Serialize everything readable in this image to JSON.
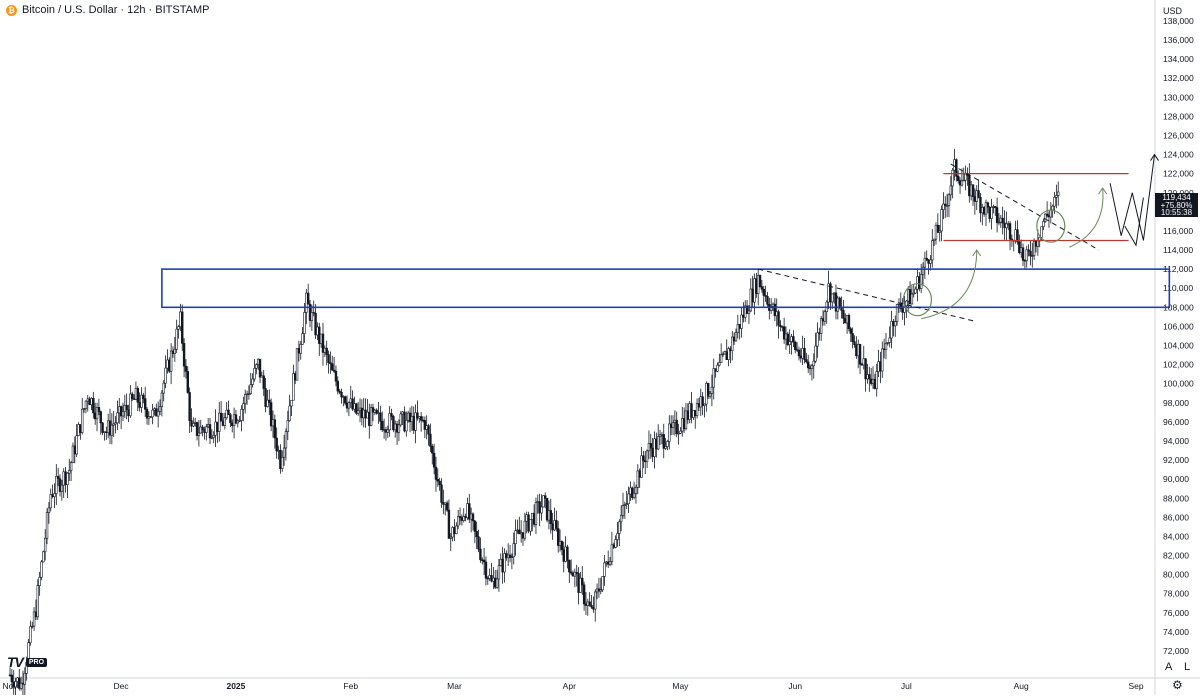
{
  "symbol_title": "Bitcoin / U.S. Dollar · 12h · BITSTAMP",
  "currency": "USD",
  "price_tag": {
    "price": "119,434",
    "change": "+75.80%",
    "countdown": "10:55:38"
  },
  "watermark": {
    "text": "TV",
    "badge": "PRO"
  },
  "corner_buttons": {
    "auto": "A",
    "log": "L"
  },
  "icons": {
    "symbol": "bitcoin-icon",
    "settings": "gear-icon"
  },
  "colors": {
    "candles": "#131722",
    "zone": "#1c3fb8",
    "resistance": "#b93a32",
    "arrow": "#6a8a5a"
  },
  "chart_data": {
    "type": "candlestick",
    "title": "Bitcoin / U.S. Dollar · 12h · BITSTAMP",
    "interval": "12h",
    "ylim": [
      70000,
      139000
    ],
    "y_ticks": [
      "72,000",
      "74,000",
      "76,000",
      "78,000",
      "80,000",
      "82,000",
      "84,000",
      "86,000",
      "88,000",
      "90,000",
      "92,000",
      "94,000",
      "96,000",
      "98,000",
      "100,000",
      "102,000",
      "104,000",
      "106,000",
      "108,000",
      "110,000",
      "112,000",
      "114,000",
      "116,000",
      "118,000",
      "120,000",
      "122,000",
      "124,000",
      "126,000",
      "128,000",
      "130,000",
      "132,000",
      "134,000",
      "136,000",
      "138,000"
    ],
    "x_ticks": [
      "Nov",
      "Dec",
      "2025",
      "Feb",
      "Mar",
      "Apr",
      "May",
      "Jun",
      "Jul",
      "Aug",
      "Sep"
    ],
    "price_path": [
      [
        "2024-11-01",
        69500
      ],
      [
        "2024-11-04",
        68500
      ],
      [
        "2024-11-08",
        76500
      ],
      [
        "2024-11-12",
        88500
      ],
      [
        "2024-11-17",
        91000
      ],
      [
        "2024-11-22",
        99000
      ],
      [
        "2024-11-27",
        95000
      ],
      [
        "2024-12-05",
        98500
      ],
      [
        "2024-12-10",
        96500
      ],
      [
        "2024-12-17",
        106500
      ],
      [
        "2024-12-20",
        95000
      ],
      [
        "2024-12-26",
        95500
      ],
      [
        "2025-01-02",
        97000
      ],
      [
        "2025-01-07",
        102000
      ],
      [
        "2025-01-13",
        92000
      ],
      [
        "2025-01-20",
        108500
      ],
      [
        "2025-01-27",
        101000
      ],
      [
        "2025-02-02",
        97000
      ],
      [
        "2025-02-10",
        96000
      ],
      [
        "2025-02-21",
        96000
      ],
      [
        "2025-02-28",
        84000
      ],
      [
        "2025-03-04",
        87000
      ],
      [
        "2025-03-11",
        79000
      ],
      [
        "2025-03-18",
        84000
      ],
      [
        "2025-03-25",
        87500
      ],
      [
        "2025-03-31",
        82000
      ],
      [
        "2025-04-07",
        76000
      ],
      [
        "2025-04-14",
        85000
      ],
      [
        "2025-04-22",
        93000
      ],
      [
        "2025-04-29",
        95000
      ],
      [
        "2025-05-08",
        99000
      ],
      [
        "2025-05-14",
        103500
      ],
      [
        "2025-05-22",
        111000
      ],
      [
        "2025-05-28",
        106000
      ],
      [
        "2025-06-05",
        101500
      ],
      [
        "2025-06-10",
        110000
      ],
      [
        "2025-06-17",
        104500
      ],
      [
        "2025-06-22",
        99500
      ],
      [
        "2025-06-28",
        107500
      ],
      [
        "2025-07-03",
        109500
      ],
      [
        "2025-07-10",
        116500
      ],
      [
        "2025-07-14",
        122500
      ],
      [
        "2025-07-22",
        118500
      ],
      [
        "2025-07-31",
        115500
      ],
      [
        "2025-08-02",
        112500
      ],
      [
        "2025-08-07",
        117000
      ],
      [
        "2025-08-11",
        119434
      ]
    ],
    "annotations": {
      "blue_zone": {
        "from": "2024-12-12",
        "to": "2025-09-10",
        "low": 108000,
        "high": 112000
      },
      "resistance_lines": [
        {
          "from": "2025-07-11",
          "to": "2025-08-30",
          "price": 122000
        },
        {
          "from": "2025-07-11",
          "to": "2025-08-30",
          "price": 115000
        }
      ],
      "trendlines": [
        {
          "from": [
            "2025-05-22",
            112000
          ],
          "to": [
            "2025-07-20",
            106500
          ]
        },
        {
          "from": [
            "2025-07-13",
            123000
          ],
          "to": [
            "2025-08-22",
            114000
          ]
        }
      ],
      "circles": [
        {
          "date": "2025-07-04",
          "price": 108800
        },
        {
          "date": "2025-08-09",
          "price": 116500
        }
      ],
      "projection_path": [
        [
          "2025-08-25",
          121000
        ],
        [
          "2025-08-28",
          115500
        ],
        [
          "2025-08-31",
          120000
        ],
        [
          "2025-09-03",
          115000
        ],
        [
          "2025-09-06",
          124000
        ]
      ]
    }
  }
}
